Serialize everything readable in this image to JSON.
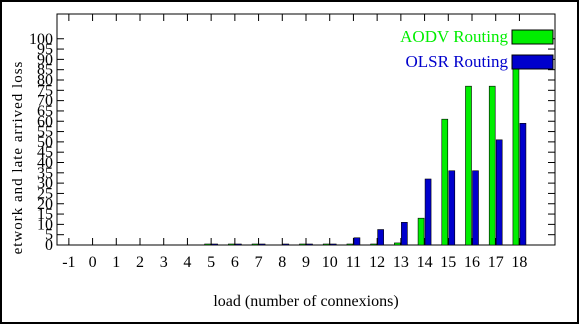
{
  "chart_data": {
    "type": "bar",
    "x": [
      -1,
      0,
      1,
      2,
      3,
      4,
      5,
      6,
      7,
      8,
      9,
      10,
      11,
      12,
      13,
      14,
      15,
      16,
      17,
      18
    ],
    "x_tick_labels": [
      "-1",
      "0",
      "1",
      "2",
      "3",
      "4",
      "5",
      "6",
      "7",
      "8",
      "9",
      "10",
      "11",
      "12",
      "13",
      "14",
      "15",
      "16",
      "17",
      "18"
    ],
    "series": [
      {
        "name": "AODV Routing",
        "color": "#00ee00",
        "values": [
          0,
          0,
          0,
          0,
          0,
          0,
          0.4,
          0.4,
          0.4,
          0,
          0.4,
          0.4,
          0.4,
          0.4,
          1,
          13,
          61,
          77,
          77,
          90
        ]
      },
      {
        "name": "OLSR Routing",
        "color": "#0000cc",
        "values": [
          0,
          0,
          0,
          0,
          0,
          0,
          0.2,
          0.2,
          0.2,
          0.2,
          0.2,
          0.2,
          3.5,
          7.5,
          11,
          32,
          36,
          36,
          51,
          59
        ]
      }
    ],
    "y_ticks": [
      0,
      5,
      10,
      15,
      20,
      25,
      30,
      35,
      40,
      45,
      50,
      55,
      60,
      65,
      70,
      75,
      80,
      85,
      90,
      95,
      100
    ],
    "y_tick_labels": [
      "0",
      "5",
      "10",
      "15",
      "20",
      "25",
      "30",
      "35",
      "40",
      "45",
      "50",
      "55",
      "60",
      "65",
      "70",
      "75",
      "80",
      "85",
      "90",
      "95",
      "100"
    ],
    "xlabel": "load (number of connexions)",
    "ylabel": "etwork and late arrived loss",
    "xlim": [
      -1.5,
      19.5
    ],
    "ylim": [
      0,
      112
    ],
    "grid": false,
    "legend_position": "top-right"
  }
}
